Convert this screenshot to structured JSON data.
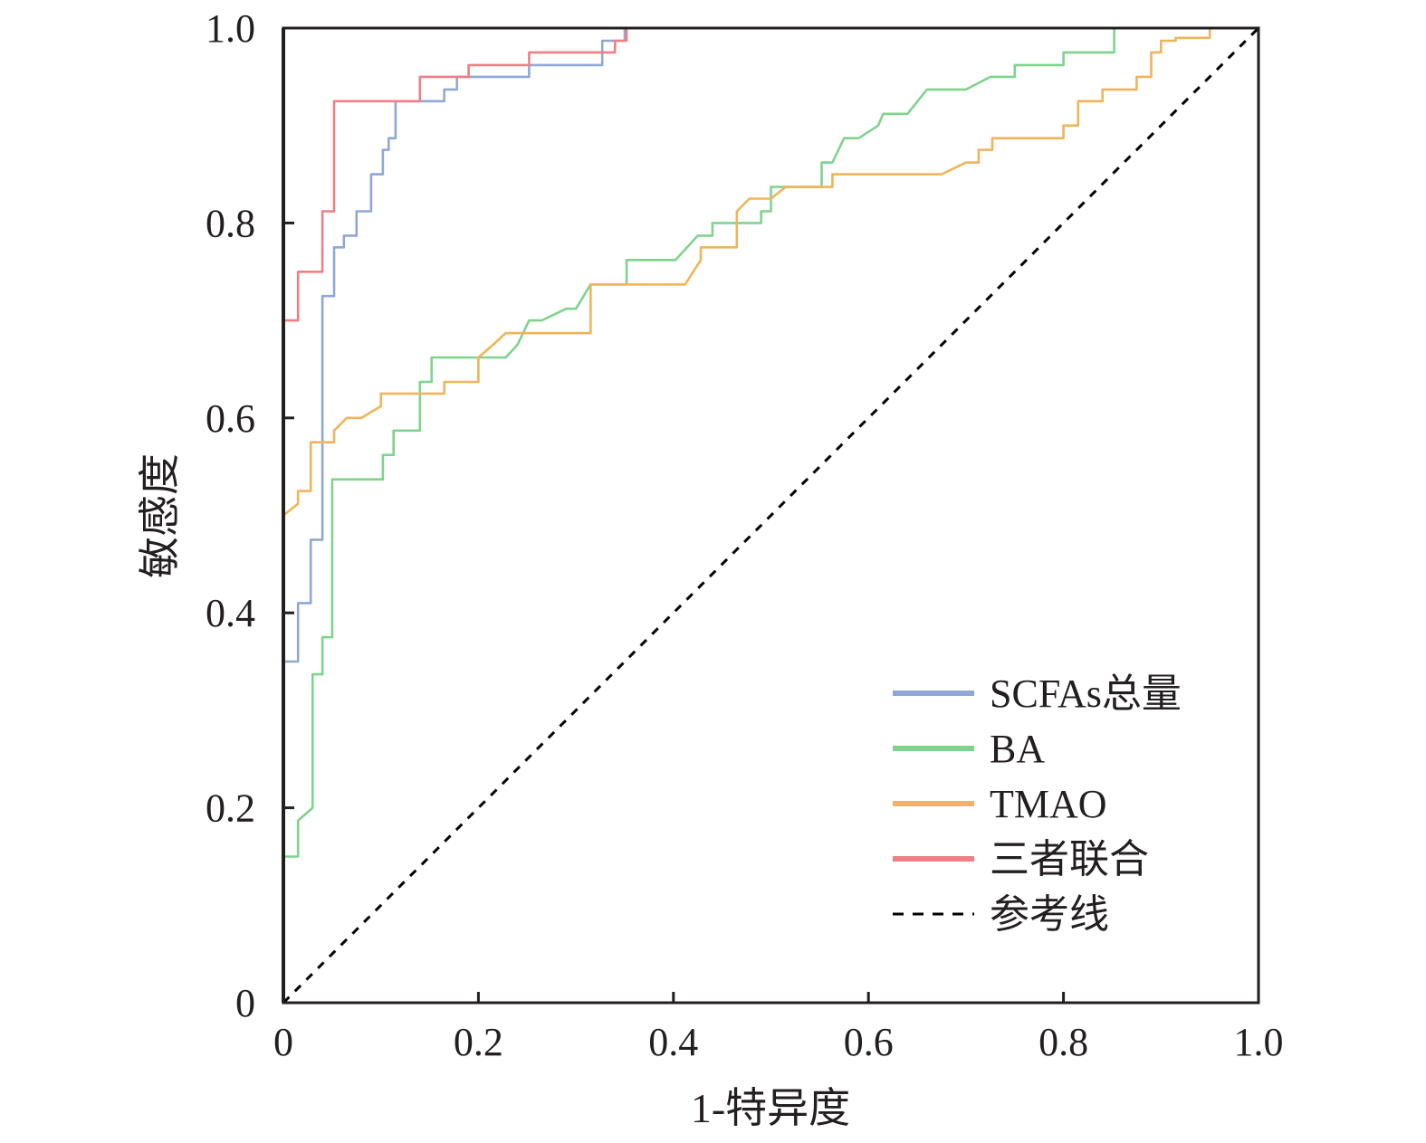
{
  "chart_data": {
    "type": "line",
    "title": "",
    "xlabel": "1-特异度",
    "ylabel": "敏感度",
    "xlim": [
      0,
      1
    ],
    "ylim": [
      0,
      1
    ],
    "x_ticks": [
      "0",
      "0.2",
      "0.4",
      "0.6",
      "0.8",
      "1.0"
    ],
    "y_ticks": [
      "0",
      "0.2",
      "0.4",
      "0.6",
      "0.8",
      "1.0"
    ],
    "legend_position": "bottom-right",
    "series": [
      {
        "name": "SCFAs总量",
        "color": "#8fa8d6",
        "points": [
          [
            0,
            0
          ],
          [
            0,
            0.35
          ],
          [
            0.015,
            0.35
          ],
          [
            0.015,
            0.41
          ],
          [
            0.028,
            0.41
          ],
          [
            0.028,
            0.475
          ],
          [
            0.04,
            0.475
          ],
          [
            0.04,
            0.725
          ],
          [
            0.052,
            0.725
          ],
          [
            0.052,
            0.775
          ],
          [
            0.062,
            0.775
          ],
          [
            0.062,
            0.787
          ],
          [
            0.075,
            0.787
          ],
          [
            0.075,
            0.812
          ],
          [
            0.09,
            0.812
          ],
          [
            0.09,
            0.85
          ],
          [
            0.102,
            0.85
          ],
          [
            0.102,
            0.875
          ],
          [
            0.108,
            0.875
          ],
          [
            0.108,
            0.887
          ],
          [
            0.115,
            0.887
          ],
          [
            0.115,
            0.925
          ],
          [
            0.165,
            0.925
          ],
          [
            0.165,
            0.937
          ],
          [
            0.178,
            0.937
          ],
          [
            0.178,
            0.95
          ],
          [
            0.252,
            0.95
          ],
          [
            0.252,
            0.962
          ],
          [
            0.327,
            0.962
          ],
          [
            0.327,
            0.987
          ],
          [
            0.35,
            0.987
          ],
          [
            0.35,
            1.0
          ],
          [
            0.41,
            1.0
          ],
          [
            0.41,
            1.0
          ],
          [
            1.0,
            1.0
          ]
        ]
      },
      {
        "name": "BA",
        "color": "#7fd38d",
        "points": [
          [
            0,
            0
          ],
          [
            0,
            0.15
          ],
          [
            0.015,
            0.15
          ],
          [
            0.015,
            0.187
          ],
          [
            0.03,
            0.2
          ],
          [
            0.03,
            0.337
          ],
          [
            0.04,
            0.337
          ],
          [
            0.04,
            0.375
          ],
          [
            0.05,
            0.375
          ],
          [
            0.05,
            0.537
          ],
          [
            0.102,
            0.537
          ],
          [
            0.102,
            0.562
          ],
          [
            0.113,
            0.562
          ],
          [
            0.113,
            0.587
          ],
          [
            0.14,
            0.587
          ],
          [
            0.14,
            0.637
          ],
          [
            0.152,
            0.637
          ],
          [
            0.152,
            0.662
          ],
          [
            0.228,
            0.662
          ],
          [
            0.24,
            0.675
          ],
          [
            0.252,
            0.7
          ],
          [
            0.265,
            0.7
          ],
          [
            0.29,
            0.712
          ],
          [
            0.3,
            0.712
          ],
          [
            0.315,
            0.737
          ],
          [
            0.352,
            0.737
          ],
          [
            0.352,
            0.762
          ],
          [
            0.402,
            0.762
          ],
          [
            0.425,
            0.787
          ],
          [
            0.44,
            0.787
          ],
          [
            0.44,
            0.8
          ],
          [
            0.49,
            0.8
          ],
          [
            0.49,
            0.812
          ],
          [
            0.5,
            0.812
          ],
          [
            0.5,
            0.837
          ],
          [
            0.552,
            0.837
          ],
          [
            0.552,
            0.862
          ],
          [
            0.563,
            0.862
          ],
          [
            0.575,
            0.887
          ],
          [
            0.59,
            0.887
          ],
          [
            0.61,
            0.9
          ],
          [
            0.615,
            0.912
          ],
          [
            0.64,
            0.912
          ],
          [
            0.66,
            0.937
          ],
          [
            0.7,
            0.937
          ],
          [
            0.725,
            0.95
          ],
          [
            0.75,
            0.95
          ],
          [
            0.75,
            0.962
          ],
          [
            0.8,
            0.962
          ],
          [
            0.8,
            0.975
          ],
          [
            0.852,
            0.975
          ],
          [
            0.852,
            1.0
          ],
          [
            1.0,
            1.0
          ]
        ]
      },
      {
        "name": "TMAO",
        "color": "#f0b45a",
        "points": [
          [
            0,
            0
          ],
          [
            0,
            0.5
          ],
          [
            0.015,
            0.512
          ],
          [
            0.015,
            0.525
          ],
          [
            0.028,
            0.525
          ],
          [
            0.028,
            0.575
          ],
          [
            0.052,
            0.575
          ],
          [
            0.052,
            0.587
          ],
          [
            0.065,
            0.6
          ],
          [
            0.08,
            0.6
          ],
          [
            0.1,
            0.612
          ],
          [
            0.1,
            0.625
          ],
          [
            0.165,
            0.625
          ],
          [
            0.165,
            0.637
          ],
          [
            0.2,
            0.637
          ],
          [
            0.2,
            0.662
          ],
          [
            0.215,
            0.675
          ],
          [
            0.228,
            0.687
          ],
          [
            0.315,
            0.687
          ],
          [
            0.315,
            0.737
          ],
          [
            0.412,
            0.737
          ],
          [
            0.428,
            0.762
          ],
          [
            0.428,
            0.775
          ],
          [
            0.465,
            0.775
          ],
          [
            0.465,
            0.812
          ],
          [
            0.478,
            0.825
          ],
          [
            0.5,
            0.825
          ],
          [
            0.515,
            0.837
          ],
          [
            0.563,
            0.837
          ],
          [
            0.563,
            0.85
          ],
          [
            0.675,
            0.85
          ],
          [
            0.7,
            0.862
          ],
          [
            0.713,
            0.862
          ],
          [
            0.713,
            0.875
          ],
          [
            0.727,
            0.875
          ],
          [
            0.727,
            0.887
          ],
          [
            0.8,
            0.887
          ],
          [
            0.8,
            0.9
          ],
          [
            0.815,
            0.9
          ],
          [
            0.815,
            0.925
          ],
          [
            0.84,
            0.925
          ],
          [
            0.84,
            0.937
          ],
          [
            0.875,
            0.937
          ],
          [
            0.875,
            0.95
          ],
          [
            0.89,
            0.95
          ],
          [
            0.89,
            0.975
          ],
          [
            0.9,
            0.975
          ],
          [
            0.9,
            0.987
          ],
          [
            0.915,
            0.987
          ],
          [
            0.915,
            0.99
          ],
          [
            0.95,
            0.99
          ],
          [
            0.95,
            1.0
          ],
          [
            1.0,
            1.0
          ]
        ]
      },
      {
        "name": "三者联合",
        "color": "#ee7f84",
        "points": [
          [
            0,
            0
          ],
          [
            0,
            0.7
          ],
          [
            0.015,
            0.7
          ],
          [
            0.015,
            0.75
          ],
          [
            0.04,
            0.75
          ],
          [
            0.04,
            0.812
          ],
          [
            0.052,
            0.812
          ],
          [
            0.052,
            0.925
          ],
          [
            0.14,
            0.925
          ],
          [
            0.14,
            0.95
          ],
          [
            0.19,
            0.95
          ],
          [
            0.19,
            0.962
          ],
          [
            0.252,
            0.962
          ],
          [
            0.252,
            0.975
          ],
          [
            0.34,
            0.975
          ],
          [
            0.34,
            0.987
          ],
          [
            0.352,
            0.987
          ],
          [
            0.352,
            1.0
          ],
          [
            1.0,
            1.0
          ]
        ]
      },
      {
        "name": "参考线",
        "color": "#000000",
        "dashed": true,
        "points": [
          [
            0,
            0
          ],
          [
            1,
            1
          ]
        ]
      }
    ]
  }
}
